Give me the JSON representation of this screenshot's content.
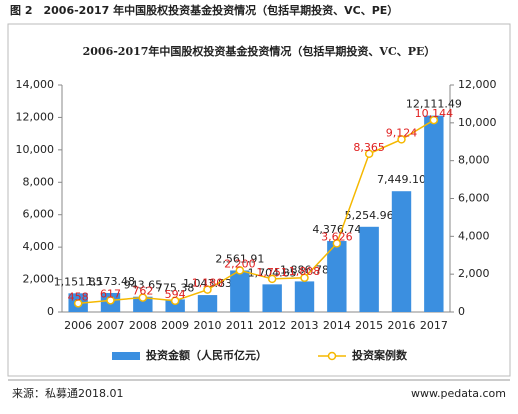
{
  "figure_caption": "图 2　2006-2017 年中国股权投资基金投资情况（包括早期投资、VC、PE）",
  "footer": {
    "source": "来源：私募通2018.01",
    "website": "www.pedata.com"
  },
  "chart_data": {
    "type": "combo",
    "title": "2006-2017年中国股权投资基金投资情况（包括早期投资、VC、PE）",
    "categories": [
      "2006",
      "2007",
      "2008",
      "2009",
      "2010",
      "2011",
      "2012",
      "2013",
      "2014",
      "2015",
      "2016",
      "2017"
    ],
    "series": [
      {
        "name": "投资金额（人民币亿元）",
        "type": "bar",
        "color": "#3b8fe0",
        "values": [
          1151.85,
          1173.48,
          943.65,
          775.38,
          1043.83,
          2561.91,
          1704.85,
          1886.78,
          4376.74,
          5254.96,
          7449.1,
          12111.49
        ],
        "value_labels": [
          "1,151.85",
          "1,173.48",
          "943.65",
          "775.38",
          "1,043.83",
          "2,561.91",
          "1,704.85",
          "1,886.78",
          "4,376.74",
          "5,254.96",
          "7,449.10",
          "12,111.49"
        ]
      },
      {
        "name": "投资案例数",
        "type": "line",
        "axis": "y2",
        "color": "#f5b800",
        "label_color": "#e02020",
        "values": [
          458,
          617,
          762,
          594,
          1180,
          2200,
          1751,
          1808,
          3626,
          8365,
          9124,
          10144
        ],
        "value_labels": [
          "458",
          "617",
          "762",
          "594",
          "1,180",
          "2,200",
          "1,751",
          "1,808",
          "3,626",
          "8,365",
          "9,124",
          "10,144"
        ]
      }
    ],
    "ylim": [
      0,
      14000
    ],
    "yticks": [
      0,
      {
        "value": 2000,
        "label": "2,000"
      },
      {
        "value": 4000,
        "label": "4,000"
      },
      {
        "value": 6000,
        "label": "6,000"
      },
      {
        "value": 8000,
        "label": "8,000"
      },
      {
        "value": 10000,
        "label": "10,000"
      },
      {
        "value": 12000,
        "label": "12,000"
      },
      {
        "value": 14000,
        "label": "14,000"
      }
    ],
    "y2lim": [
      0,
      12000
    ],
    "y2ticks": [
      0,
      {
        "value": 2000,
        "label": "2,000"
      },
      {
        "value": 4000,
        "label": "4,000"
      },
      {
        "value": 6000,
        "label": "6,000"
      },
      {
        "value": 8000,
        "label": "8,000"
      },
      {
        "value": 10000,
        "label": "10,000"
      },
      {
        "value": 12000,
        "label": "12,000"
      }
    ],
    "legend": "bottom"
  }
}
